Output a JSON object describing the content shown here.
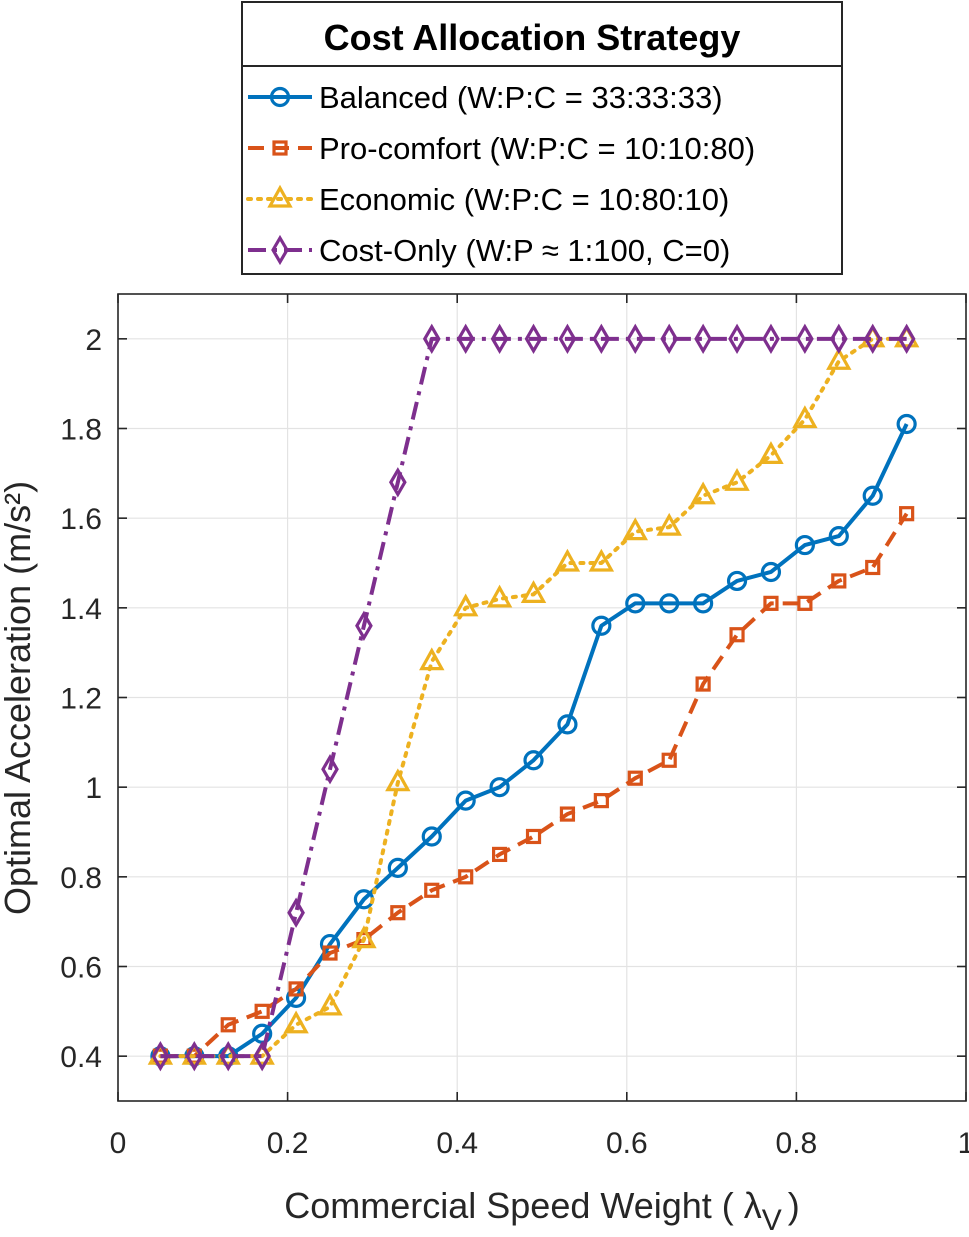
{
  "chart_data": {
    "type": "line",
    "xlabel": "Commercial Speed Weight ( λ",
    "xlabel_subscript": "V",
    "xlabel_close": ")",
    "ylabel": "Optimal Acceleration (m/s²)",
    "xlim": [
      0,
      1
    ],
    "ylim": [
      0.3,
      2.1
    ],
    "x_ticks": [
      0,
      0.2,
      0.4,
      0.6,
      0.8,
      1
    ],
    "x_tick_labels": [
      "0",
      "0.2",
      "0.4",
      "0.6",
      "0.8",
      "1"
    ],
    "y_ticks": [
      0.4,
      0.6,
      0.8,
      1.0,
      1.2,
      1.4,
      1.6,
      1.8,
      2.0
    ],
    "y_tick_labels": [
      "0.4",
      "0.6",
      "0.8",
      "1",
      "1.2",
      "1.4",
      "1.6",
      "1.8",
      "2"
    ],
    "grid": true,
    "legend": {
      "title": "Cost Allocation Strategy",
      "placement": "above plot"
    },
    "x": [
      0.05,
      0.09,
      0.13,
      0.17,
      0.21,
      0.25,
      0.29,
      0.33,
      0.37,
      0.41,
      0.45,
      0.49,
      0.53,
      0.57,
      0.61,
      0.65,
      0.69,
      0.73,
      0.77,
      0.81,
      0.85,
      0.89,
      0.93
    ],
    "series": [
      {
        "name": "Balanced (W:P:C = 33:33:33)",
        "color": "#0072BD",
        "style": "solid",
        "marker": "circle",
        "values": [
          0.4,
          0.4,
          0.4,
          0.45,
          0.53,
          0.65,
          0.75,
          0.82,
          0.89,
          0.97,
          1.0,
          1.06,
          1.14,
          1.36,
          1.41,
          1.41,
          1.41,
          1.46,
          1.48,
          1.54,
          1.56,
          1.65,
          1.81
        ]
      },
      {
        "name": "Pro-comfort (W:P:C = 10:10:80)",
        "color": "#D95319",
        "style": "dashed",
        "marker": "square",
        "values": [
          0.4,
          0.4,
          0.47,
          0.5,
          0.55,
          0.63,
          0.66,
          0.72,
          0.77,
          0.8,
          0.85,
          0.89,
          0.94,
          0.97,
          1.02,
          1.06,
          1.23,
          1.34,
          1.41,
          1.41,
          1.46,
          1.49,
          1.61
        ]
      },
      {
        "name": "Economic (W:P:C = 10:80:10)",
        "color": "#EDB120",
        "style": "dotted",
        "marker": "triangle",
        "values": [
          0.4,
          0.4,
          0.4,
          0.4,
          0.47,
          0.51,
          0.66,
          1.01,
          1.28,
          1.4,
          1.42,
          1.43,
          1.5,
          1.5,
          1.57,
          1.58,
          1.65,
          1.68,
          1.74,
          1.82,
          1.95,
          2.0,
          2.0
        ]
      },
      {
        "name": "Cost-Only (W:P ≈ 1:100, C=0)",
        "color": "#7E2F8E",
        "style": "dashdot",
        "marker": "diamond",
        "values": [
          0.4,
          0.4,
          0.4,
          0.4,
          0.72,
          1.04,
          1.36,
          1.68,
          2.0,
          2.0,
          2.0,
          2.0,
          2.0,
          2.0,
          2.0,
          2.0,
          2.0,
          2.0,
          2.0,
          2.0,
          2.0,
          2.0,
          2.0
        ]
      }
    ]
  }
}
